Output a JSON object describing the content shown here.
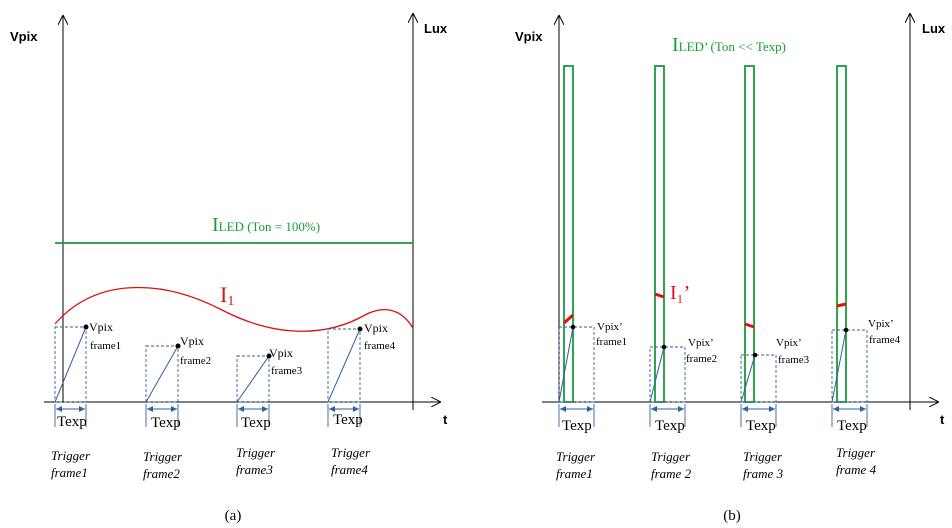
{
  "colors": {
    "axis": "#000000",
    "led": "#1a9a3a",
    "i1": "#dd1111",
    "ramp": "#3060a0",
    "dash": "#3060a0"
  },
  "panel_a": {
    "y_label": "Vpix",
    "y2_label": "Lux",
    "x_label": "t",
    "led_label_main": "I",
    "led_label_sub": "LED (Ton = 100%)",
    "i1_label_main": "I",
    "i1_label_sub": "1",
    "frames": [
      {
        "vpix_label": "Vpix",
        "frame_label": "frame1",
        "texp_label": "Texp",
        "trigger_line1": "Trigger",
        "trigger_line2": "frame1"
      },
      {
        "vpix_label": "Vpix",
        "frame_label": "frame2",
        "texp_label": "Texp",
        "trigger_line1": "Trigger",
        "trigger_line2": "frame2"
      },
      {
        "vpix_label": "Vpix",
        "frame_label": "frame3",
        "texp_label": "Texp",
        "trigger_line1": "Trigger",
        "trigger_line2": "frame3"
      },
      {
        "vpix_label": "Vpix",
        "frame_label": "frame4",
        "texp_label": "Texp",
        "trigger_line1": "Trigger",
        "trigger_line2": "frame4"
      }
    ],
    "caption": "(a)"
  },
  "panel_b": {
    "y_label": "Vpix",
    "y2_label": "Lux",
    "x_label": "t",
    "led_label_main": "I",
    "led_label_sub": "LED’ (Ton << Texp)",
    "i1_label": "I₁’",
    "frames": [
      {
        "vpix_label": "Vpix’",
        "frame_label": "frame1",
        "texp_label": "Texp",
        "trigger_line1": "Trigger",
        "trigger_line2": "frame1"
      },
      {
        "vpix_label": "Vpix’",
        "frame_label": "frame2",
        "texp_label": "Texp",
        "trigger_line1": "Trigger",
        "trigger_line2": "frame 2"
      },
      {
        "vpix_label": "Vpix’",
        "frame_label": "frame3",
        "texp_label": "Texp",
        "trigger_line1": "Trigger",
        "trigger_line2": "frame 3"
      },
      {
        "vpix_label": "Vpix’",
        "frame_label": "frame4",
        "texp_label": "Texp",
        "trigger_line1": "Trigger",
        "trigger_line2": "frame 4"
      }
    ],
    "caption": "(b)"
  }
}
